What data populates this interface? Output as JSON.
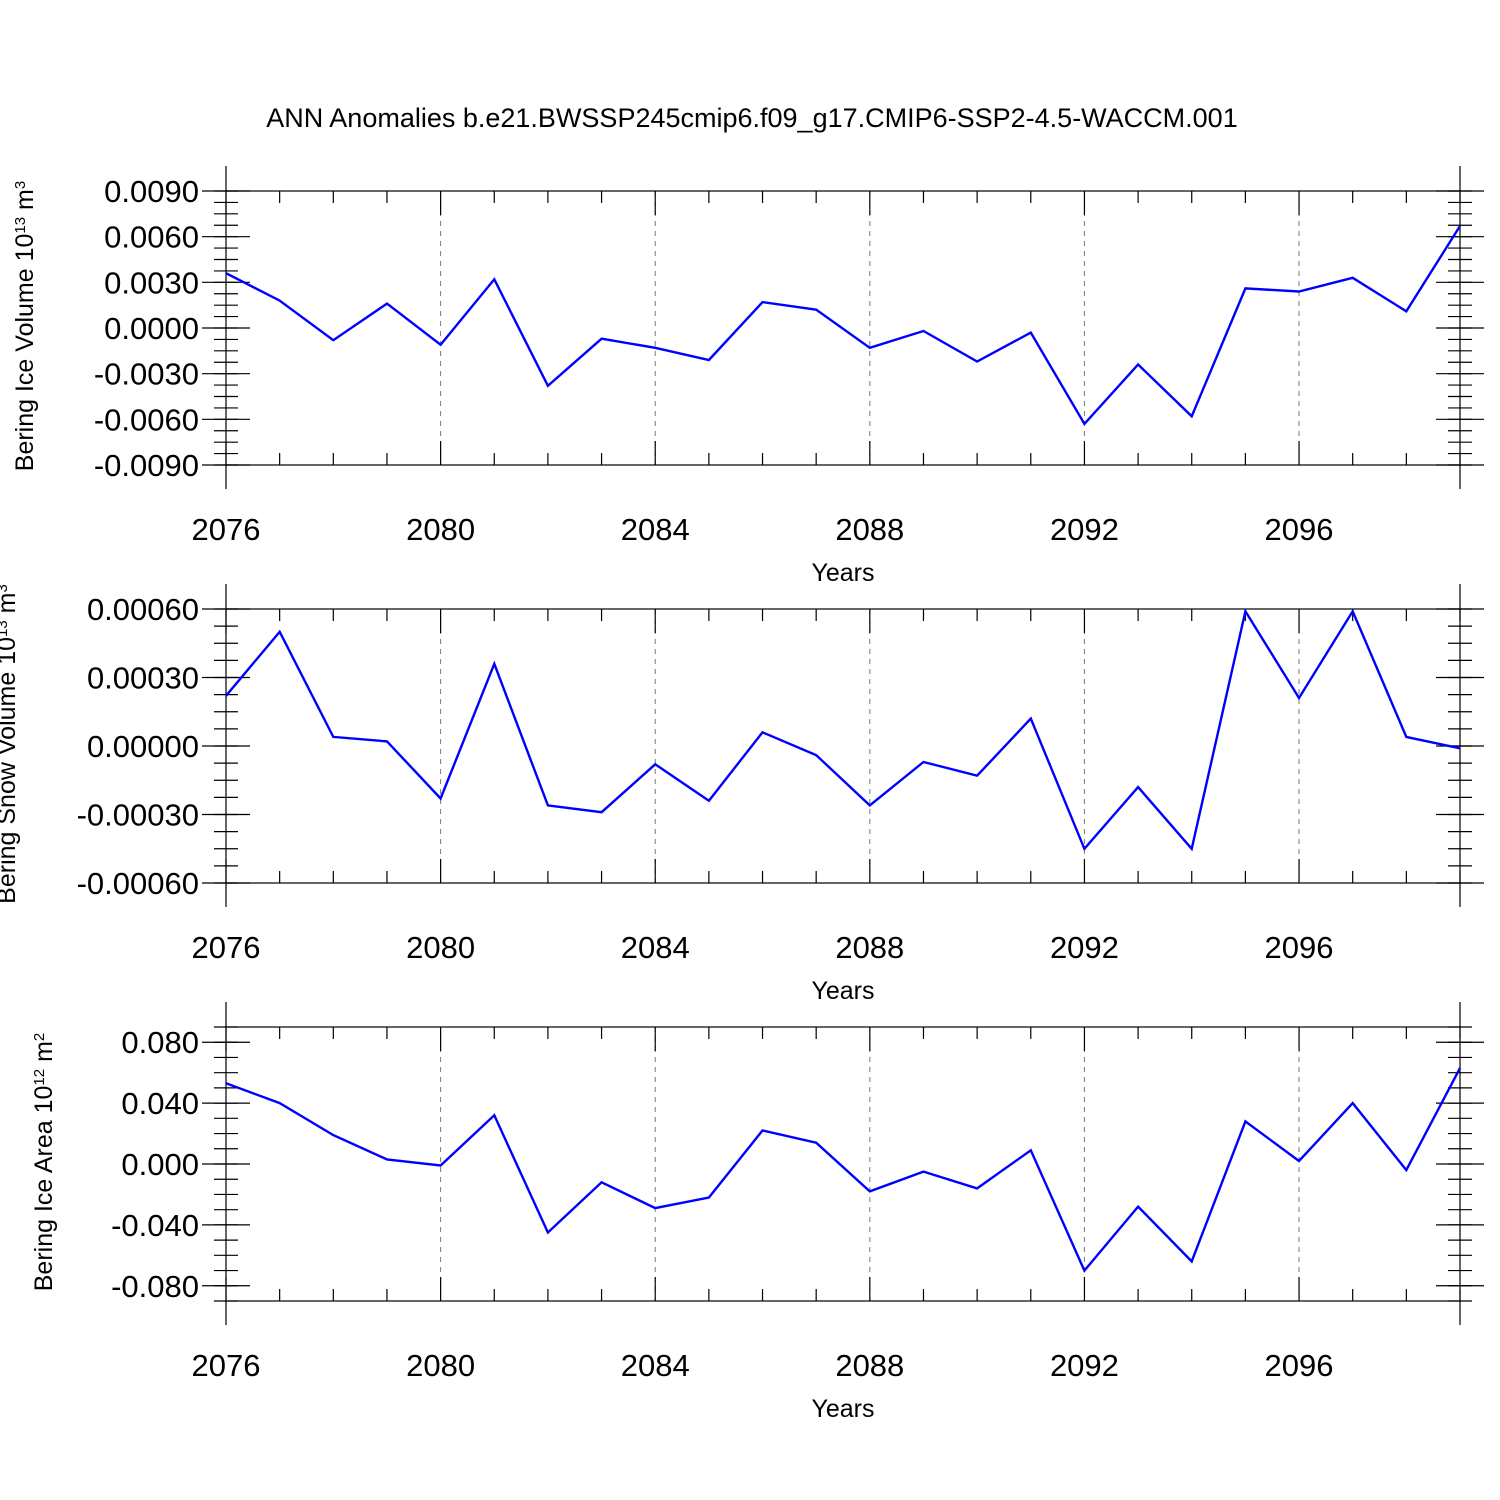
{
  "title": "ANN Anomalies b.e21.BWSSP245cmip6.f09_g17.CMIP6-SSP2-4.5-WACCM.001",
  "colors": {
    "line": "#0000ff",
    "axis": "#000000",
    "grid": "#7a7a7a"
  },
  "chart_data": [
    {
      "type": "line",
      "xlabel": "Years",
      "ylabel": {
        "text": "Bering Ice Volume 10",
        "sup": "13",
        "unit": " m",
        "unit_sup": "3"
      },
      "xlim": [
        2076,
        2099
      ],
      "ylim": [
        -0.009,
        0.009
      ],
      "xticks": [
        "2076",
        "2080",
        "2084",
        "2088",
        "2092",
        "2096"
      ],
      "yticks": [
        "-0.0090",
        "-0.0060",
        "-0.0030",
        "0.0000",
        "0.0030",
        "0.0060",
        "0.0090"
      ],
      "grid": "vertical dashed at major ticks",
      "x": [
        2076,
        2077,
        2078,
        2079,
        2080,
        2081,
        2082,
        2083,
        2084,
        2085,
        2086,
        2087,
        2088,
        2089,
        2090,
        2091,
        2092,
        2093,
        2094,
        2095,
        2096,
        2097,
        2098,
        2099
      ],
      "values": [
        0.0036,
        0.0018,
        -0.0008,
        0.0016,
        -0.0011,
        0.0032,
        -0.0038,
        -0.0007,
        -0.0013,
        -0.0021,
        0.0017,
        0.0012,
        -0.0013,
        -0.0002,
        -0.0022,
        -0.0003,
        -0.0063,
        -0.0024,
        -0.0058,
        0.0026,
        0.0024,
        0.0033,
        0.0011,
        0.0067
      ]
    },
    {
      "type": "line",
      "xlabel": "Years",
      "ylabel": {
        "text": "Bering Snow Volume 10",
        "sup": "13",
        "unit": " m",
        "unit_sup": "3"
      },
      "xlim": [
        2076,
        2099
      ],
      "ylim": [
        -0.0006,
        0.0006
      ],
      "xticks": [
        "2076",
        "2080",
        "2084",
        "2088",
        "2092",
        "2096"
      ],
      "yticks": [
        "-0.00060",
        "-0.00030",
        "0.00000",
        "0.00030",
        "0.00060"
      ],
      "grid": "vertical dashed at major ticks",
      "x": [
        2076,
        2077,
        2078,
        2079,
        2080,
        2081,
        2082,
        2083,
        2084,
        2085,
        2086,
        2087,
        2088,
        2089,
        2090,
        2091,
        2092,
        2093,
        2094,
        2095,
        2096,
        2097,
        2098,
        2099
      ],
      "values": [
        0.00022,
        0.0005,
        4e-05,
        2e-05,
        -0.00023,
        0.00036,
        -0.00026,
        -0.00029,
        -8e-05,
        -0.00024,
        6e-05,
        -4e-05,
        -0.00026,
        -7e-05,
        -0.00013,
        0.00012,
        -0.00045,
        -0.00018,
        -0.00045,
        0.00059,
        0.00021,
        0.00059,
        4e-05,
        -1e-05
      ]
    },
    {
      "type": "line",
      "xlabel": "Years",
      "ylabel": {
        "text": "Bering Ice Area 10",
        "sup": "12",
        "unit": " m",
        "unit_sup": "2"
      },
      "xlim": [
        2076,
        2099
      ],
      "ylim": [
        -0.09,
        0.09
      ],
      "xticks": [
        "2076",
        "2080",
        "2084",
        "2088",
        "2092",
        "2096"
      ],
      "yticks": [
        "-0.080",
        "-0.040",
        "0.000",
        "0.040",
        "0.080"
      ],
      "grid": "vertical dashed at major ticks",
      "x": [
        2076,
        2077,
        2078,
        2079,
        2080,
        2081,
        2082,
        2083,
        2084,
        2085,
        2086,
        2087,
        2088,
        2089,
        2090,
        2091,
        2092,
        2093,
        2094,
        2095,
        2096,
        2097,
        2098,
        2099
      ],
      "values": [
        0.053,
        0.04,
        0.019,
        0.003,
        -0.001,
        0.032,
        -0.045,
        -0.012,
        -0.029,
        -0.022,
        0.022,
        0.014,
        -0.018,
        -0.005,
        -0.016,
        0.009,
        -0.07,
        -0.028,
        -0.064,
        0.028,
        0.002,
        0.04,
        -0.004,
        0.063
      ]
    }
  ]
}
